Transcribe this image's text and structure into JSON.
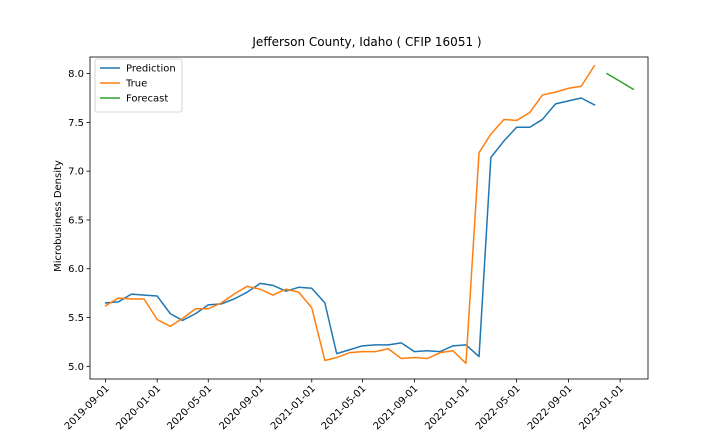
{
  "chart_data": {
    "type": "line",
    "title": "Jefferson County, Idaho ( CFIP 16051 )",
    "xlabel": "",
    "ylabel": "Microbusiness Density",
    "xlim": [
      "2019-07-26",
      "2023-03-08"
    ],
    "ylim": [
      4.87,
      8.17
    ],
    "grid": false,
    "legend_position": "top-left",
    "x_ticks": [
      "2019-09-01",
      "2020-01-01",
      "2020-05-01",
      "2020-09-01",
      "2021-01-01",
      "2021-05-01",
      "2021-09-01",
      "2022-01-01",
      "2022-05-01",
      "2022-09-01",
      "2023-01-01"
    ],
    "y_ticks": [
      5.0,
      5.5,
      6.0,
      6.5,
      7.0,
      7.5,
      8.0
    ],
    "y_tick_labels": [
      "5.0",
      "5.5",
      "6.0",
      "6.5",
      "7.0",
      "7.5",
      "8.0"
    ],
    "series": [
      {
        "name": "Prediction",
        "color": "#1f77b4",
        "x": [
          "2019-09-01",
          "2019-10-01",
          "2019-11-01",
          "2019-12-01",
          "2020-01-01",
          "2020-02-01",
          "2020-03-01",
          "2020-04-01",
          "2020-05-01",
          "2020-06-01",
          "2020-07-01",
          "2020-08-01",
          "2020-09-01",
          "2020-10-01",
          "2020-11-01",
          "2020-12-01",
          "2021-01-01",
          "2021-02-01",
          "2021-03-01",
          "2021-04-01",
          "2021-05-01",
          "2021-06-01",
          "2021-07-01",
          "2021-08-01",
          "2021-09-01",
          "2021-10-01",
          "2021-11-01",
          "2021-12-01",
          "2022-01-01",
          "2022-02-01",
          "2022-03-01",
          "2022-04-01",
          "2022-05-01",
          "2022-06-01",
          "2022-07-01",
          "2022-08-01",
          "2022-09-01",
          "2022-10-01",
          "2022-11-01"
        ],
        "y": [
          5.65,
          5.66,
          5.74,
          5.73,
          5.72,
          5.54,
          5.47,
          5.54,
          5.63,
          5.64,
          5.69,
          5.76,
          5.85,
          5.83,
          5.77,
          5.81,
          5.8,
          5.65,
          5.13,
          5.17,
          5.21,
          5.22,
          5.22,
          5.24,
          5.15,
          5.16,
          5.15,
          5.21,
          5.22,
          5.1,
          7.14,
          7.31,
          7.45,
          7.45,
          7.53,
          7.69,
          7.72,
          7.75,
          7.68
        ]
      },
      {
        "name": "True",
        "color": "#ff7f0e",
        "x": [
          "2019-09-01",
          "2019-10-01",
          "2019-11-01",
          "2019-12-01",
          "2020-01-01",
          "2020-02-01",
          "2020-03-01",
          "2020-04-01",
          "2020-05-01",
          "2020-06-01",
          "2020-07-01",
          "2020-08-01",
          "2020-09-01",
          "2020-10-01",
          "2020-11-01",
          "2020-12-01",
          "2021-01-01",
          "2021-02-01",
          "2021-03-01",
          "2021-04-01",
          "2021-05-01",
          "2021-06-01",
          "2021-07-01",
          "2021-08-01",
          "2021-09-01",
          "2021-10-01",
          "2021-11-01",
          "2021-12-01",
          "2022-01-01",
          "2022-02-01",
          "2022-03-01",
          "2022-04-01",
          "2022-05-01",
          "2022-06-01",
          "2022-07-01",
          "2022-08-01",
          "2022-09-01",
          "2022-10-01",
          "2022-11-01"
        ],
        "y": [
          5.62,
          5.7,
          5.69,
          5.69,
          5.48,
          5.41,
          5.49,
          5.59,
          5.59,
          5.65,
          5.74,
          5.82,
          5.79,
          5.73,
          5.79,
          5.76,
          5.6,
          5.06,
          5.09,
          5.14,
          5.15,
          5.15,
          5.18,
          5.08,
          5.09,
          5.08,
          5.14,
          5.16,
          5.03,
          7.19,
          7.38,
          7.53,
          7.52,
          7.6,
          7.78,
          7.81,
          7.85,
          7.87,
          8.08
        ]
      },
      {
        "name": "Forecast",
        "color": "#2ca02c",
        "x": [
          "2022-12-01",
          "2023-01-01",
          "2023-02-01"
        ],
        "y": [
          8.0,
          7.92,
          7.84
        ]
      }
    ]
  }
}
